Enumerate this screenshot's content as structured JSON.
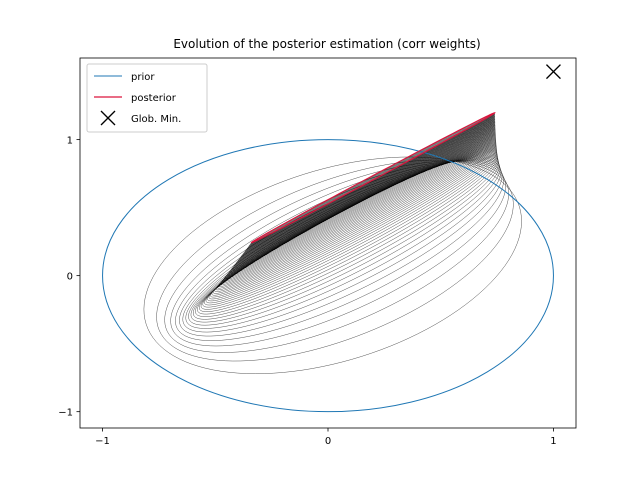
{
  "chart_data": {
    "type": "line",
    "title": "Evolution of the posterior estimation (corr weights)",
    "xlabel": "",
    "ylabel": "",
    "xlim": [
      -1.1,
      1.1
    ],
    "ylim": [
      -1.12,
      1.6
    ],
    "xticks": [
      -1,
      0,
      1
    ],
    "yticks": [
      -1,
      0,
      1
    ],
    "xtick_labels": [
      "−1",
      "0",
      "1"
    ],
    "ytick_labels": [
      "−1",
      "0",
      "1"
    ],
    "grid": false,
    "legend_position": "top-left",
    "prior": {
      "name": "prior",
      "center": [
        0,
        0
      ],
      "radius_x": 1,
      "radius_y": 1,
      "color": "#1f77b4"
    },
    "posterior": {
      "name": "posterior",
      "color": "#dc143c",
      "center": [
        0.2,
        0.72
      ],
      "major_semi_axis": 0.72,
      "minor_semi_axis": 0.012,
      "angle_deg": 41.5
    },
    "intermediate": {
      "count": 60,
      "color": "#000000",
      "ellipses": [
        {
          "center": [
            0.0,
            0.0
          ],
          "major_semi_axis": 1.0,
          "minor_semi_axis": 1.0,
          "angle_deg": 41.5
        },
        {
          "center": [
            0.2,
            0.72
          ],
          "major_semi_axis": 0.72,
          "minor_semi_axis": 0.012,
          "angle_deg": 41.5
        }
      ]
    },
    "global_minimum": {
      "name": "Glob. Min.",
      "x": 1.0,
      "y": 1.5,
      "marker": "x",
      "color": "#000000"
    }
  }
}
